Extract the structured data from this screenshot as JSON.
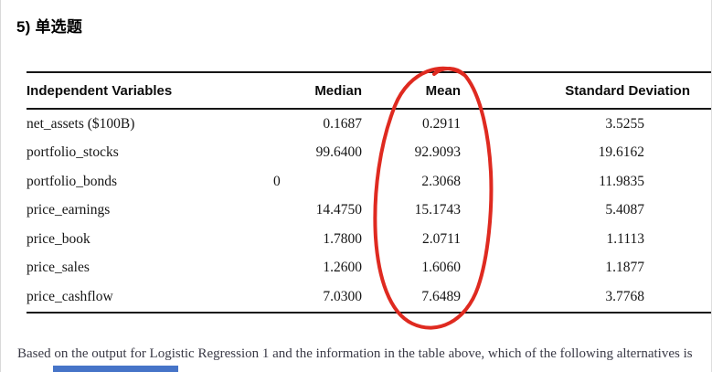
{
  "page": {
    "title": "5) 单选题",
    "question_text": "Based on the output for Logistic Regression 1 and the information in the table above, which of the following alternatives is"
  },
  "table": {
    "columns": [
      "Independent Variables",
      "Median",
      "Mean",
      "Standard Deviation"
    ],
    "rows": [
      {
        "variable": "net_assets ($100B)",
        "median": "0.1687",
        "mean": "0.2911",
        "sd": "3.5255"
      },
      {
        "variable": "portfolio_stocks",
        "median": "99.6400",
        "mean": "92.9093",
        "sd": "19.6162"
      },
      {
        "variable": "portfolio_bonds",
        "median": "0",
        "mean": "2.3068",
        "sd": "11.9835"
      },
      {
        "variable": "price_earnings",
        "median": "14.4750",
        "mean": "15.1743",
        "sd": "5.4087"
      },
      {
        "variable": "price_book",
        "median": "1.7800",
        "mean": "2.0711",
        "sd": "1.1113"
      },
      {
        "variable": "price_sales",
        "median": "1.2600",
        "mean": "1.6060",
        "sd": "1.1877"
      },
      {
        "variable": "price_cashflow",
        "median": "7.0300",
        "mean": "7.6489",
        "sd": "3.7768"
      }
    ]
  },
  "annotation": {
    "type": "hand-drawn-ellipse",
    "highlights": "Mean column",
    "color": "#df2a20"
  },
  "colors": {
    "rule": "#161616",
    "question_text": "#3a3a46",
    "blue_bar": "#4674c8",
    "page_border": "#d9d9d9"
  }
}
